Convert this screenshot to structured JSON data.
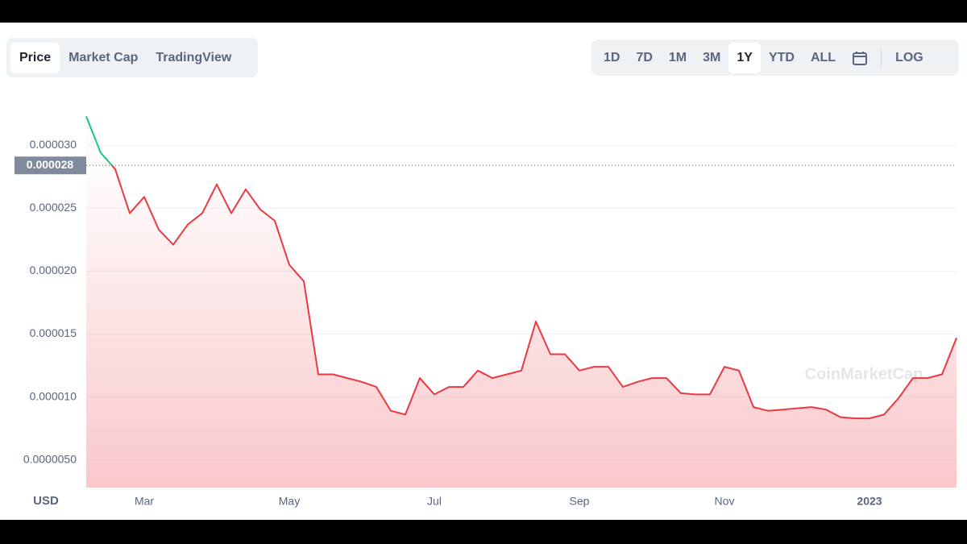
{
  "tabs": [
    "Price",
    "Market Cap",
    "TradingView"
  ],
  "ranges": [
    "1D",
    "7D",
    "1M",
    "3M",
    "1Y",
    "YTD",
    "ALL"
  ],
  "scale_toggle": "LOG",
  "watermark": "CoinMarketCap",
  "chart_data": {
    "type": "line",
    "y_label": "USD",
    "categories": [
      null,
      null,
      null,
      null,
      "Mar",
      null,
      null,
      null,
      null,
      null,
      null,
      null,
      null,
      null,
      "May",
      null,
      null,
      null,
      null,
      null,
      null,
      null,
      null,
      null,
      "Jul",
      null,
      null,
      null,
      null,
      null,
      null,
      null,
      null,
      null,
      "Sep",
      null,
      null,
      null,
      null,
      null,
      null,
      null,
      null,
      null,
      "Nov",
      null,
      null,
      null,
      null,
      null,
      null,
      null,
      null,
      null,
      "2023",
      null,
      null,
      null,
      null,
      null,
      null
    ],
    "series": [
      {
        "color": "#ea3943",
        "above_color": "#16c784",
        "values": [
          3.23e-05,
          2.94e-05,
          2.81e-05,
          2.46e-05,
          2.59e-05,
          2.33e-05,
          2.21e-05,
          2.37e-05,
          2.46e-05,
          2.69e-05,
          2.46e-05,
          2.65e-05,
          2.49e-05,
          2.4e-05,
          2.05e-05,
          1.92e-05,
          1.18e-05,
          1.18e-05,
          1.15e-05,
          1.12e-05,
          1.08e-05,
          8.9e-06,
          8.6e-06,
          1.15e-05,
          1.02e-05,
          1.08e-05,
          1.08e-05,
          1.21e-05,
          1.15e-05,
          1.18e-05,
          1.21e-05,
          1.6e-05,
          1.34e-05,
          1.34e-05,
          1.21e-05,
          1.24e-05,
          1.24e-05,
          1.08e-05,
          1.12e-05,
          1.15e-05,
          1.15e-05,
          1.03e-05,
          1.02e-05,
          1.02e-05,
          1.24e-05,
          1.21e-05,
          9.2e-06,
          8.9e-06,
          9e-06,
          9.1e-06,
          9.2e-06,
          9e-06,
          8.4e-06,
          8.3e-06,
          8.3e-06,
          8.6e-06,
          9.9e-06,
          1.15e-05,
          1.15e-05,
          1.18e-05,
          1.47e-05
        ]
      }
    ],
    "current_price": {
      "value": 2.84e-05,
      "label": "0.000028"
    },
    "ylim": [
      2.8e-06,
      3.45e-05
    ],
    "yticks": [
      {
        "value": 3e-05,
        "label": "0.000030"
      },
      {
        "value": 2.5e-05,
        "label": "0.000025"
      },
      {
        "value": 2e-05,
        "label": "0.000020"
      },
      {
        "value": 1.5e-05,
        "label": "0.000015"
      },
      {
        "value": 1e-05,
        "label": "0.000010"
      },
      {
        "value": 5e-06,
        "label": "0.0000050"
      }
    ],
    "grid": true
  }
}
